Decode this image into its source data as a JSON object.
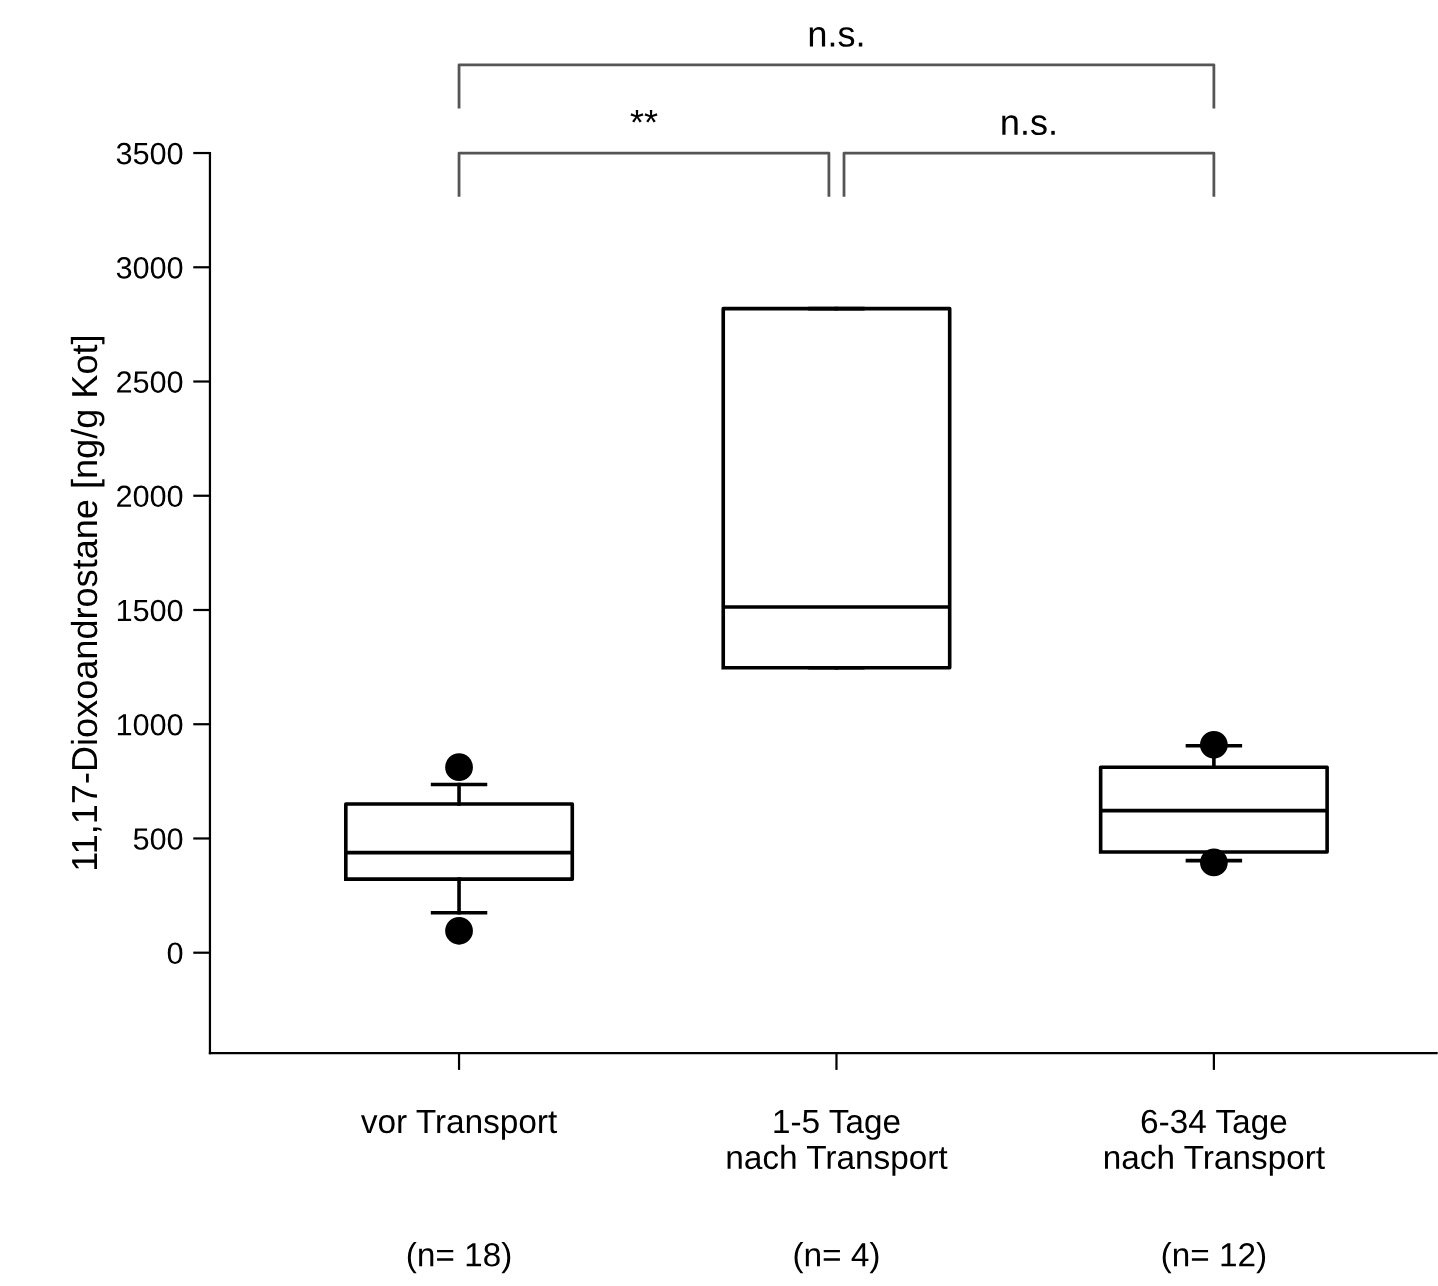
{
  "chart_data": {
    "type": "box",
    "ylabel": "11,17-Dioxoandrostane [ng/g Kot]",
    "categories": [
      "vor Transport",
      "1-5 Tage\nnach Transport",
      "6-34 Tage\nnach Transport"
    ],
    "boxes": [
      {
        "low": 175,
        "q1": 322,
        "median": 438,
        "q3": 651,
        "high": 736,
        "outliers": [
          812,
          96
        ]
      },
      {
        "low": 1247,
        "q1": 1247,
        "median": 1513,
        "q3": 2819,
        "high": 2819
      },
      {
        "low": 403,
        "q1": 441,
        "median": 622,
        "q3": 812,
        "high": 906,
        "outliers": [
          910,
          395
        ]
      }
    ],
    "ylim": [
      -440,
      3500
    ],
    "yticks": [
      0,
      500,
      1000,
      1500,
      2000,
      2500,
      3000,
      3500
    ],
    "grid": false,
    "annotations": [
      "**",
      "n.s.",
      "n.s.",
      "(n= 18)",
      "(n= 4)",
      "(n= 12)"
    ]
  }
}
